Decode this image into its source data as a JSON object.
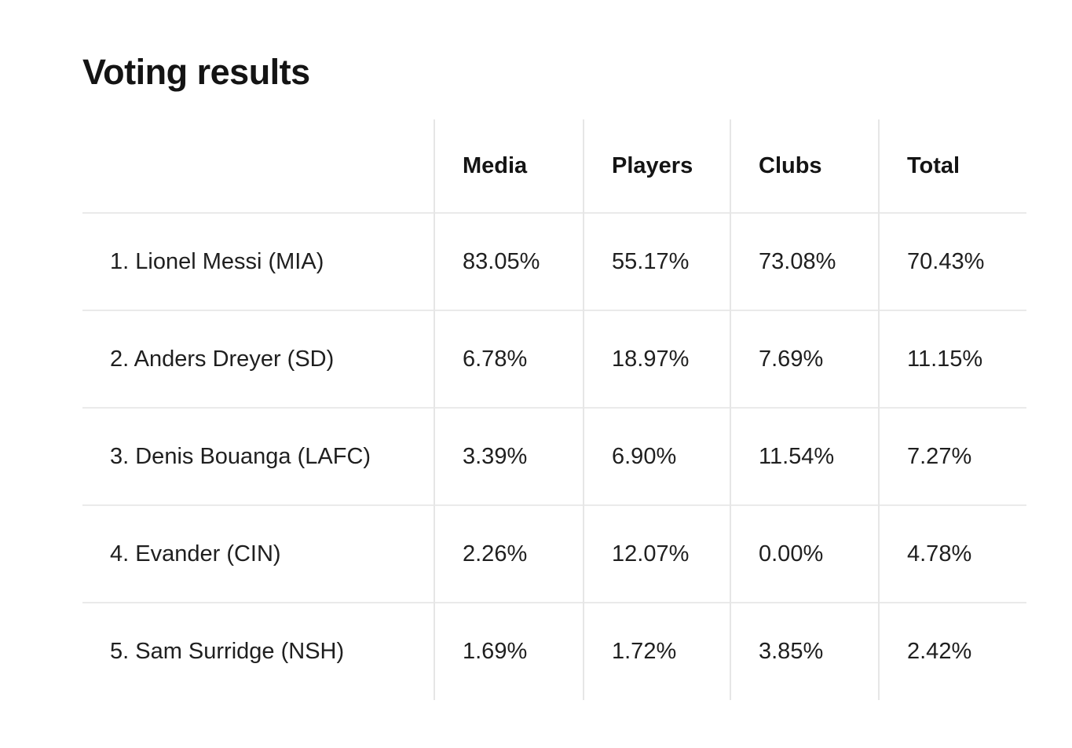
{
  "page": {
    "title": "Voting results"
  },
  "colors": {
    "background": "#ffffff",
    "text": "#1a1a1a",
    "border": "#e6e6e6"
  },
  "table": {
    "columns": [
      "",
      "Media",
      "Players",
      "Clubs",
      "Total"
    ],
    "rows": [
      {
        "name": "1. Lionel Messi (MIA)",
        "media": "83.05%",
        "players": "55.17%",
        "clubs": "73.08%",
        "total": "70.43%"
      },
      {
        "name": "2. Anders Dreyer (SD)",
        "media": "6.78%",
        "players": "18.97%",
        "clubs": "7.69%",
        "total": "11.15%"
      },
      {
        "name": "3. Denis Bouanga (LAFC)",
        "media": "3.39%",
        "players": "6.90%",
        "clubs": "11.54%",
        "total": "7.27%"
      },
      {
        "name": "4. Evander (CIN)",
        "media": "2.26%",
        "players": "12.07%",
        "clubs": "0.00%",
        "total": "4.78%"
      },
      {
        "name": "5. Sam Surridge (NSH)",
        "media": "1.69%",
        "players": "1.72%",
        "clubs": "3.85%",
        "total": "2.42%"
      }
    ]
  },
  "chart_data": {
    "type": "table",
    "title": "Voting results",
    "columns": [
      "Media",
      "Players",
      "Clubs",
      "Total"
    ],
    "categories": [
      "1. Lionel Messi (MIA)",
      "2. Anders Dreyer (SD)",
      "3. Denis Bouanga (LAFC)",
      "4. Evander (CIN)",
      "5. Sam Surridge (NSH)"
    ],
    "series": [
      {
        "name": "Media",
        "values": [
          83.05,
          6.78,
          3.39,
          2.26,
          1.69
        ]
      },
      {
        "name": "Players",
        "values": [
          55.17,
          18.97,
          6.9,
          12.07,
          1.72
        ]
      },
      {
        "name": "Clubs",
        "values": [
          73.08,
          7.69,
          11.54,
          0.0,
          3.85
        ]
      },
      {
        "name": "Total",
        "values": [
          70.43,
          11.15,
          7.27,
          4.78,
          2.42
        ]
      }
    ],
    "unit": "%"
  }
}
